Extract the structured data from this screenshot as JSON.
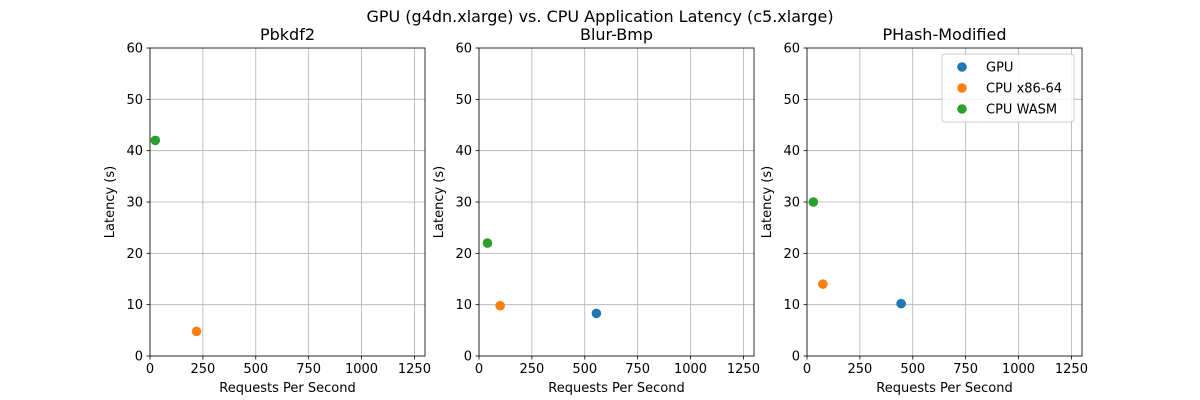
{
  "figure": {
    "title": "GPU (g4dn.xlarge) vs. CPU Application Latency (c5.xlarge)"
  },
  "chart_data": [
    {
      "type": "scatter",
      "title": "Pbkdf2",
      "xlabel": "Requests Per Second",
      "ylabel": "Latency (s)",
      "xlim": [
        0,
        1300
      ],
      "ylim": [
        0,
        60
      ],
      "xticks": [
        0,
        250,
        500,
        750,
        1000,
        1250
      ],
      "yticks": [
        0,
        10,
        20,
        30,
        40,
        50,
        60
      ],
      "grid": true,
      "legend": null,
      "series": [
        {
          "name": "GPU",
          "color": "#1f77b4",
          "points": []
        },
        {
          "name": "CPU x86-64",
          "color": "#ff7f0e",
          "points": [
            [
              220,
              4.8
            ]
          ]
        },
        {
          "name": "CPU WASM",
          "color": "#2ca02c",
          "points": [
            [
              25,
              42.0
            ]
          ]
        }
      ]
    },
    {
      "type": "scatter",
      "title": "Blur-Bmp",
      "xlabel": "Requests Per Second",
      "ylabel": "Latency (s)",
      "xlim": [
        0,
        1300
      ],
      "ylim": [
        0,
        60
      ],
      "xticks": [
        0,
        250,
        500,
        750,
        1000,
        1250
      ],
      "yticks": [
        0,
        10,
        20,
        30,
        40,
        50,
        60
      ],
      "grid": true,
      "legend": null,
      "series": [
        {
          "name": "GPU",
          "color": "#1f77b4",
          "points": [
            [
              555,
              8.3
            ]
          ]
        },
        {
          "name": "CPU x86-64",
          "color": "#ff7f0e",
          "points": [
            [
              100,
              9.8
            ]
          ]
        },
        {
          "name": "CPU WASM",
          "color": "#2ca02c",
          "points": [
            [
              40,
              22.0
            ]
          ]
        }
      ]
    },
    {
      "type": "scatter",
      "title": "PHash-Modified",
      "xlabel": "Requests Per Second",
      "ylabel": "Latency (s)",
      "xlim": [
        0,
        1300
      ],
      "ylim": [
        0,
        60
      ],
      "xticks": [
        0,
        250,
        500,
        750,
        1000,
        1250
      ],
      "yticks": [
        0,
        10,
        20,
        30,
        40,
        50,
        60
      ],
      "grid": true,
      "legend": "top-right",
      "series": [
        {
          "name": "GPU",
          "color": "#1f77b4",
          "points": [
            [
              445,
              10.2
            ]
          ]
        },
        {
          "name": "CPU x86-64",
          "color": "#ff7f0e",
          "points": [
            [
              75,
              14.0
            ]
          ]
        },
        {
          "name": "CPU WASM",
          "color": "#2ca02c",
          "points": [
            [
              30,
              30.0
            ]
          ]
        }
      ]
    }
  ]
}
